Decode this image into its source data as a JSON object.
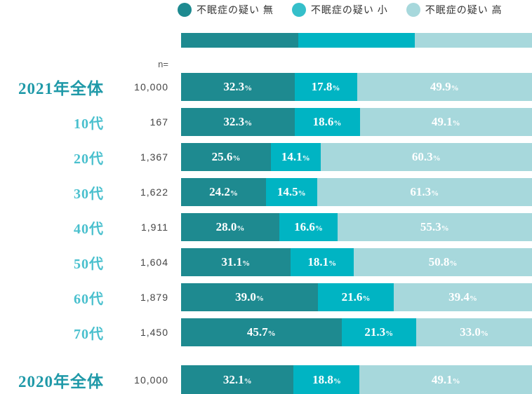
{
  "legend": {
    "items": [
      {
        "label": "不眠症の疑い 無",
        "color": "#1e8a90"
      },
      {
        "label": "不眠症の疑い 小",
        "color": "#35bfca"
      },
      {
        "label": "不眠症の疑い 高",
        "color": "#a7d8dc"
      }
    ]
  },
  "n_header": "n=",
  "percent_suffix": "%",
  "colors": {
    "segment_none": "#1e8a90",
    "segment_low": "#00b4c3",
    "segment_high": "#a7d8dc",
    "year_label": "#1f99a8",
    "age_label": "#4ac0ce",
    "n_text": "#444444",
    "bar_value_text": "#ffffff"
  },
  "chart_data": {
    "type": "bar",
    "orientation": "horizontal",
    "stacked": true,
    "unit": "%",
    "x_max": 100,
    "series_names": [
      "不眠症の疑い 無",
      "不眠症の疑い 小",
      "不眠症の疑い 高"
    ],
    "legend_position": "top",
    "grid": false,
    "rows": [
      {
        "label": "2021年全体",
        "n": "10,000",
        "values": [
          "32.3",
          "17.8",
          "49.9"
        ]
      },
      {
        "label": "10代",
        "n": "167",
        "values": [
          "32.3",
          "18.6",
          "49.1"
        ]
      },
      {
        "label": "20代",
        "n": "1,367",
        "values": [
          "25.6",
          "14.1",
          "60.3"
        ]
      },
      {
        "label": "30代",
        "n": "1,622",
        "values": [
          "24.2",
          "14.5",
          "61.3"
        ]
      },
      {
        "label": "40代",
        "n": "1,911",
        "values": [
          "28.0",
          "16.6",
          "55.3"
        ]
      },
      {
        "label": "50代",
        "n": "1,604",
        "values": [
          "31.1",
          "18.1",
          "50.8"
        ]
      },
      {
        "label": "60代",
        "n": "1,879",
        "values": [
          "39.0",
          "21.6",
          "39.4"
        ]
      },
      {
        "label": "70代",
        "n": "1,450",
        "values": [
          "45.7",
          "21.3",
          "33.0"
        ]
      },
      {
        "label": "2020年全体",
        "n": "10,000",
        "values": [
          "32.1",
          "18.8",
          "49.1"
        ]
      }
    ]
  }
}
